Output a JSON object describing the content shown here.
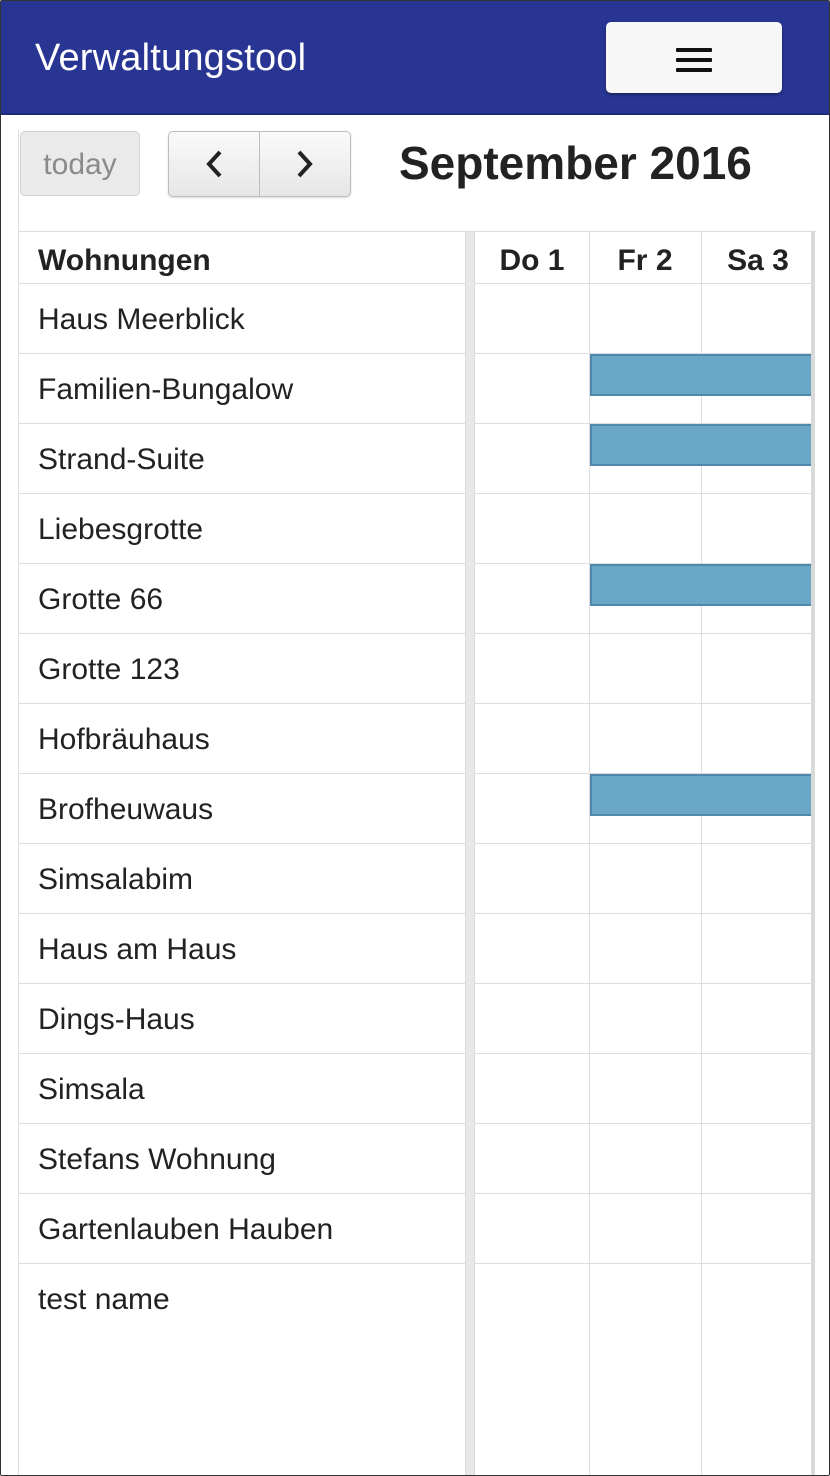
{
  "navbar": {
    "title": "Verwaltungstool",
    "menu_icon": "hamburger-menu-icon"
  },
  "toolbar": {
    "today_label": "today",
    "prev_icon": "chevron-left-icon",
    "next_icon": "chevron-right-icon",
    "title": "September 2016"
  },
  "resources": {
    "header": "Wohnungen",
    "items": [
      "Haus Meerblick",
      "Familien-Bungalow",
      "Strand-Suite",
      "Liebesgrotte",
      "Grotte 66",
      "Grotte 123",
      "Hofbräuhaus",
      "Brofheuwaus",
      "Simsalabim",
      "Haus am Haus",
      "Dings-Haus",
      "Simsala",
      "Stefans Wohnung",
      "Gartenlauben Hauben",
      "test name"
    ]
  },
  "days": [
    "Do 1",
    "Fr 2",
    "Sa 3"
  ],
  "events": [
    {
      "resource": "Familien-Bungalow",
      "start_day": "Fr 2",
      "color": "#6aa6c6"
    },
    {
      "resource": "Strand-Suite",
      "start_day": "Fr 2",
      "color": "#6aa6c6"
    },
    {
      "resource": "Grotte 66",
      "start_day": "Fr 2",
      "color": "#6aa6c6"
    },
    {
      "resource": "Brofheuwaus",
      "start_day": "Fr 2",
      "color": "#6aa6c6"
    }
  ],
  "colors": {
    "navbar": "#283593",
    "event": "#6aa6c6"
  }
}
